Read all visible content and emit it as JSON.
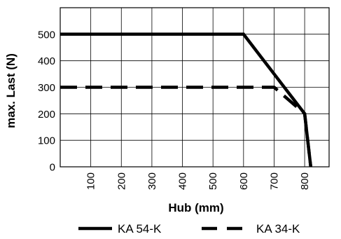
{
  "chart_data": {
    "type": "line",
    "xlabel": "Hub (mm)",
    "ylabel": "max. Last (N)",
    "xlim": [
      0,
      880
    ],
    "ylim": [
      0,
      600
    ],
    "x_ticks": [
      100,
      200,
      300,
      400,
      500,
      600,
      700,
      800
    ],
    "y_ticks": [
      0,
      100,
      200,
      300,
      400,
      500
    ],
    "grid": true,
    "legend_position": "bottom",
    "series": [
      {
        "name": "KA 54-K",
        "style": "solid",
        "color": "#000000",
        "points": [
          [
            0,
            500
          ],
          [
            600,
            500
          ],
          [
            800,
            200
          ],
          [
            820,
            0
          ]
        ]
      },
      {
        "name": "KA 34-K",
        "style": "dashed",
        "color": "#000000",
        "points": [
          [
            0,
            300
          ],
          [
            700,
            300
          ],
          [
            800,
            200
          ],
          [
            820,
            0
          ]
        ]
      }
    ]
  }
}
